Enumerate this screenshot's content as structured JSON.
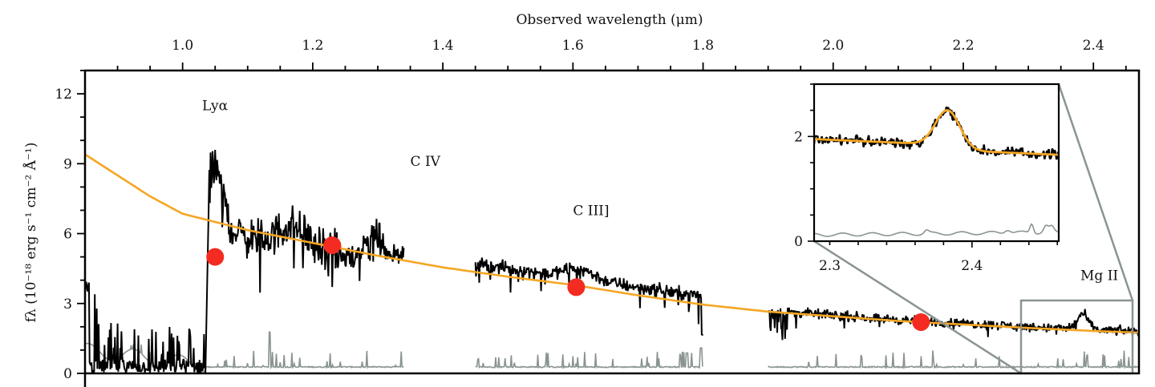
{
  "chart_data": {
    "type": "line",
    "title": "",
    "xlabel": "Observed wavelength (μm)",
    "ylabel": "fλ (10⁻¹⁸ erg s⁻¹ cm⁻² Å⁻¹)",
    "xlim": [
      0.85,
      2.47
    ],
    "ylim": [
      0,
      13
    ],
    "x_ticks": [
      1.0,
      1.2,
      1.4,
      1.6,
      1.8,
      2.0,
      2.2,
      2.4
    ],
    "x_tick_labels": [
      "1.0",
      "1.2",
      "1.4",
      "1.6",
      "1.8",
      "2.0",
      "2.2",
      "2.4"
    ],
    "y_ticks": [
      0,
      3,
      6,
      9,
      12
    ],
    "y_tick_labels": [
      "0",
      "3",
      "6",
      "9",
      "12"
    ],
    "grid": false,
    "legend": null,
    "line_labels": [
      {
        "text": "Lyα",
        "x": 1.03,
        "y": 11.3
      },
      {
        "text": "C IV",
        "x": 1.35,
        "y": 8.9
      },
      {
        "text": "C III]",
        "x": 1.6,
        "y": 6.8
      },
      {
        "text": "Mg II",
        "x": 2.38,
        "y": 4.0
      }
    ],
    "series": [
      {
        "name": "Observed spectrum",
        "color": "#000000",
        "segments": [
          {
            "x_start": 0.85,
            "x_end": 1.035,
            "level": 0.7,
            "noise": 1.2,
            "kind": "low"
          },
          {
            "x_start": 1.035,
            "x_end": 1.34,
            "kind": "lya"
          },
          {
            "x_start": 1.45,
            "x_end": 1.8,
            "kind": "ciii"
          },
          {
            "x_start": 1.9,
            "x_end": 2.47,
            "kind": "red"
          }
        ]
      },
      {
        "name": "Noise spectrum",
        "color": "#8a9492",
        "segments": [
          {
            "x_start": 0.85,
            "x_end": 1.34
          },
          {
            "x_start": 1.45,
            "x_end": 1.8
          },
          {
            "x_start": 1.9,
            "x_end": 2.47
          }
        ]
      },
      {
        "name": "Continuum model",
        "color": "#f5a623",
        "x": [
          0.85,
          0.95,
          1.0,
          1.1,
          1.2,
          1.3,
          1.4,
          1.5,
          1.6,
          1.7,
          1.8,
          1.9,
          2.0,
          2.1,
          2.2,
          2.3,
          2.4,
          2.47
        ],
        "y": [
          9.4,
          7.6,
          6.85,
          6.15,
          5.6,
          5.05,
          4.55,
          4.15,
          3.8,
          3.35,
          2.95,
          2.65,
          2.45,
          2.25,
          2.1,
          1.95,
          1.82,
          1.75
        ]
      },
      {
        "name": "Photometry",
        "type": "scatter",
        "color": "#f42b21",
        "x": [
          1.05,
          1.23,
          1.605,
          2.135
        ],
        "y": [
          5.0,
          5.5,
          3.7,
          2.2
        ]
      }
    ],
    "zoom_box": {
      "x": [
        2.29,
        2.46
      ],
      "y": [
        0,
        3.0
      ],
      "color": "#8a9492"
    },
    "inset": {
      "xlim": [
        2.289,
        2.461
      ],
      "ylim": [
        0,
        3.0
      ],
      "x_ticks": [
        2.3,
        2.4
      ],
      "x_tick_labels": [
        "2.3",
        "2.4"
      ],
      "y_ticks": [
        0,
        2
      ],
      "y_tick_labels": [
        "0",
        "2"
      ],
      "gaussian_fit": {
        "center": 2.383,
        "amplitude": 0.68,
        "sigma": 0.0085,
        "continuum_start": 1.95,
        "continuum_end": 1.75,
        "color": "#f5a623"
      },
      "noise_level": 0.12
    }
  }
}
